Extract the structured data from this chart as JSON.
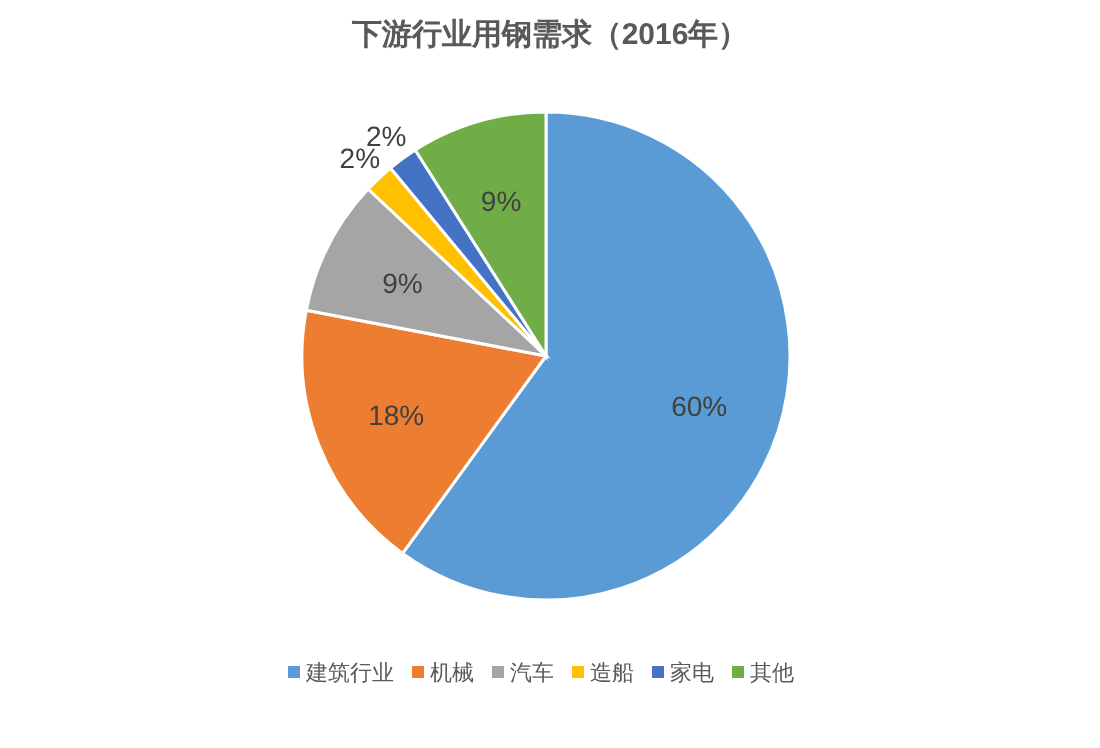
{
  "chart_data": {
    "type": "pie",
    "title": "下游行业用钢需求（2016年）",
    "categories": [
      "建筑行业",
      "机械",
      "汽车",
      "造船",
      "家电",
      "其他"
    ],
    "values": [
      60,
      18,
      9,
      2,
      2,
      9
    ],
    "colors": [
      "#5b9bd5",
      "#ed7d31",
      "#a5a5a5",
      "#ffc000",
      "#4472c4",
      "#70ad47"
    ],
    "value_labels": [
      "60%",
      "18%",
      "9%",
      "2%",
      "2%",
      "9%"
    ],
    "legend": "bottom"
  }
}
